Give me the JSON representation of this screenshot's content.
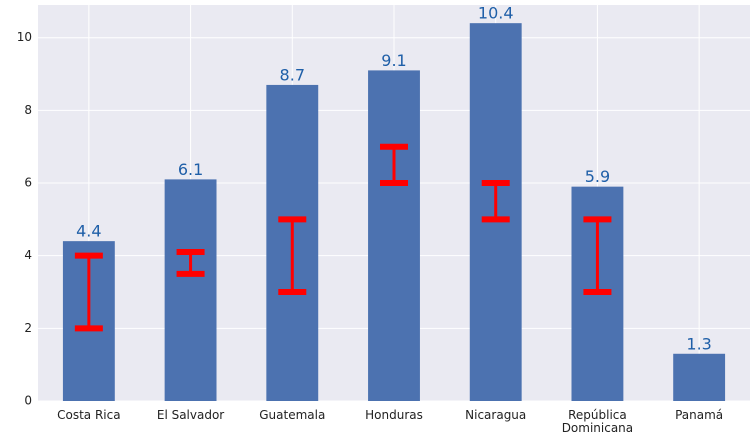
{
  "chart_data": {
    "type": "bar",
    "categories": [
      "Costa Rica",
      "El Salvador",
      "Guatemala",
      "Honduras",
      "Nicaragua",
      "República Dominicana",
      "Panamá"
    ],
    "values": [
      4.4,
      6.1,
      8.7,
      9.1,
      10.4,
      5.9,
      1.3
    ],
    "color": "#4c72b0",
    "value_label_color": "#1f5fa8",
    "range_low": [
      2,
      3.5,
      3,
      6,
      5,
      3,
      null
    ],
    "range_high": [
      4,
      4.1,
      5,
      7,
      6,
      5,
      null
    ],
    "range_color": "#ff0000",
    "ylim": [
      0,
      10.9
    ],
    "yticks": [
      0,
      2,
      4,
      6,
      8,
      10
    ],
    "grid": true
  }
}
